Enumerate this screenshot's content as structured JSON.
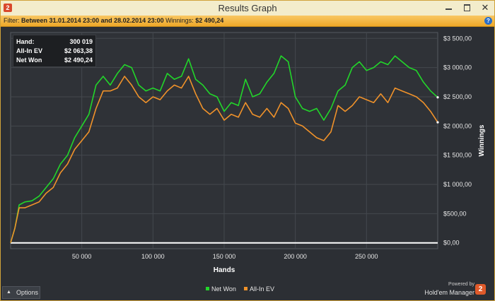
{
  "window": {
    "title": "Results Graph",
    "app_icon": "2",
    "close_glyph": "✕"
  },
  "filter": {
    "prefix": "Filter:",
    "range": "Between 31.01.2014 23:00 and 28.02.2014 23:00",
    "winnings_label": "Winnings:",
    "winnings_value": "$2 490,24",
    "help_glyph": "?"
  },
  "stats": [
    {
      "label": "Hand:",
      "value": "300 019"
    },
    {
      "label": "All-In EV",
      "value": "$2 063,38"
    },
    {
      "label": "Net Won",
      "value": "$2 490,24"
    }
  ],
  "footer": {
    "options_caret": "▲",
    "options_label": "Options",
    "powered_by": "Powered by",
    "brand": "Hold'em Manager",
    "brand_logo": "2"
  },
  "chart_data": {
    "type": "line",
    "xlabel": "Hands",
    "ylabel": "Winnings",
    "xlim": [
      0,
      300019
    ],
    "ylim": [
      -100,
      3600
    ],
    "x_ticks": [
      {
        "value": 50000,
        "label": "50 000"
      },
      {
        "value": 100000,
        "label": "100 000"
      },
      {
        "value": 150000,
        "label": "150 000"
      },
      {
        "value": 200000,
        "label": "200 000"
      },
      {
        "value": 250000,
        "label": "250 000"
      }
    ],
    "y_ticks": [
      {
        "value": 0,
        "label": "$0,00"
      },
      {
        "value": 500,
        "label": "$500,00"
      },
      {
        "value": 1000,
        "label": "$1 000,00"
      },
      {
        "value": 1500,
        "label": "$1 500,00"
      },
      {
        "value": 2000,
        "label": "$2 000,00"
      },
      {
        "value": 2500,
        "label": "$2 500,00"
      },
      {
        "value": 3000,
        "label": "$3 000,00"
      },
      {
        "value": 3500,
        "label": "$3 500,00"
      }
    ],
    "grid": true,
    "legend_position": "bottom-center",
    "series": [
      {
        "name": "Net Won",
        "color": "#22d62a",
        "points": [
          [
            0,
            0
          ],
          [
            3000,
            250
          ],
          [
            6000,
            650
          ],
          [
            10000,
            700
          ],
          [
            15000,
            720
          ],
          [
            20000,
            800
          ],
          [
            25000,
            950
          ],
          [
            30000,
            1100
          ],
          [
            35000,
            1350
          ],
          [
            40000,
            1500
          ],
          [
            45000,
            1800
          ],
          [
            50000,
            2000
          ],
          [
            55000,
            2200
          ],
          [
            60000,
            2700
          ],
          [
            65000,
            2850
          ],
          [
            70000,
            2700
          ],
          [
            75000,
            2900
          ],
          [
            80000,
            3050
          ],
          [
            85000,
            3000
          ],
          [
            90000,
            2700
          ],
          [
            95000,
            2600
          ],
          [
            100000,
            2650
          ],
          [
            105000,
            2600
          ],
          [
            110000,
            2900
          ],
          [
            115000,
            2800
          ],
          [
            120000,
            2850
          ],
          [
            125000,
            3150
          ],
          [
            130000,
            2800
          ],
          [
            135000,
            2700
          ],
          [
            140000,
            2550
          ],
          [
            145000,
            2500
          ],
          [
            150000,
            2250
          ],
          [
            155000,
            2400
          ],
          [
            160000,
            2350
          ],
          [
            165000,
            2800
          ],
          [
            170000,
            2500
          ],
          [
            175000,
            2550
          ],
          [
            180000,
            2750
          ],
          [
            185000,
            2900
          ],
          [
            190000,
            3200
          ],
          [
            195000,
            3100
          ],
          [
            200000,
            2500
          ],
          [
            205000,
            2300
          ],
          [
            210000,
            2250
          ],
          [
            215000,
            2300
          ],
          [
            220000,
            2100
          ],
          [
            225000,
            2300
          ],
          [
            230000,
            2600
          ],
          [
            235000,
            2700
          ],
          [
            240000,
            3000
          ],
          [
            245000,
            3100
          ],
          [
            250000,
            2950
          ],
          [
            255000,
            3000
          ],
          [
            260000,
            3100
          ],
          [
            265000,
            3050
          ],
          [
            270000,
            3200
          ],
          [
            275000,
            3100
          ],
          [
            280000,
            3000
          ],
          [
            285000,
            2950
          ],
          [
            290000,
            2750
          ],
          [
            295000,
            2600
          ],
          [
            300019,
            2490.24
          ]
        ]
      },
      {
        "name": "All-In EV",
        "color": "#f0922a",
        "points": [
          [
            0,
            0
          ],
          [
            3000,
            250
          ],
          [
            6000,
            600
          ],
          [
            10000,
            600
          ],
          [
            15000,
            650
          ],
          [
            20000,
            700
          ],
          [
            25000,
            850
          ],
          [
            30000,
            950
          ],
          [
            35000,
            1200
          ],
          [
            40000,
            1350
          ],
          [
            45000,
            1600
          ],
          [
            50000,
            1750
          ],
          [
            55000,
            1900
          ],
          [
            60000,
            2300
          ],
          [
            65000,
            2600
          ],
          [
            70000,
            2600
          ],
          [
            75000,
            2650
          ],
          [
            80000,
            2850
          ],
          [
            85000,
            2700
          ],
          [
            90000,
            2500
          ],
          [
            95000,
            2400
          ],
          [
            100000,
            2500
          ],
          [
            105000,
            2450
          ],
          [
            110000,
            2600
          ],
          [
            115000,
            2700
          ],
          [
            120000,
            2650
          ],
          [
            125000,
            2850
          ],
          [
            130000,
            2550
          ],
          [
            135000,
            2300
          ],
          [
            140000,
            2200
          ],
          [
            145000,
            2300
          ],
          [
            150000,
            2100
          ],
          [
            155000,
            2200
          ],
          [
            160000,
            2150
          ],
          [
            165000,
            2400
          ],
          [
            170000,
            2200
          ],
          [
            175000,
            2150
          ],
          [
            180000,
            2300
          ],
          [
            185000,
            2150
          ],
          [
            190000,
            2400
          ],
          [
            195000,
            2300
          ],
          [
            200000,
            2050
          ],
          [
            205000,
            2000
          ],
          [
            210000,
            1900
          ],
          [
            215000,
            1800
          ],
          [
            220000,
            1750
          ],
          [
            225000,
            1900
          ],
          [
            230000,
            2350
          ],
          [
            235000,
            2250
          ],
          [
            240000,
            2350
          ],
          [
            245000,
            2500
          ],
          [
            250000,
            2450
          ],
          [
            255000,
            2400
          ],
          [
            260000,
            2550
          ],
          [
            265000,
            2400
          ],
          [
            270000,
            2650
          ],
          [
            275000,
            2600
          ],
          [
            280000,
            2550
          ],
          [
            285000,
            2500
          ],
          [
            290000,
            2400
          ],
          [
            295000,
            2250
          ],
          [
            300019,
            2063.38
          ]
        ]
      }
    ]
  }
}
